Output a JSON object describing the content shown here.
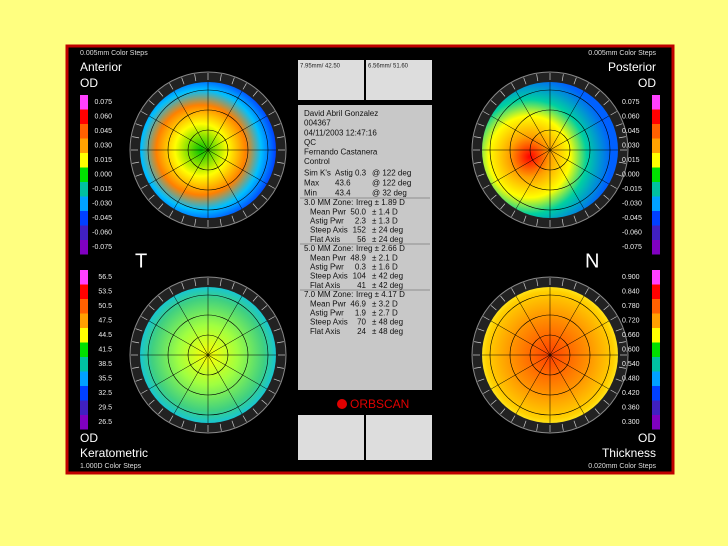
{
  "panels": {
    "anterior": {
      "steps": "0.005mm Color Steps",
      "title": "Anterior",
      "eye": "OD",
      "scale": [
        "0.075",
        "0.060",
        "0.045",
        "0.030",
        "0.015",
        "0.000",
        "-0.015",
        "-0.030",
        "-0.045",
        "-0.060",
        "-0.075"
      ]
    },
    "posterior": {
      "steps": "0.005mm Color Steps",
      "title": "Posterior",
      "eye": "OD",
      "scale": [
        "0.075",
        "0.060",
        "0.045",
        "0.030",
        "0.015",
        "0.000",
        "-0.015",
        "-0.030",
        "-0.045",
        "-0.060",
        "-0.075"
      ]
    },
    "keratometric": {
      "eye": "OD",
      "title": "Keratometric",
      "steps": "1.000D Color Steps",
      "scale": [
        "56.5",
        "53.5",
        "50.5",
        "47.5",
        "44.5",
        "41.5",
        "38.5",
        "35.5",
        "32.5",
        "29.5",
        "26.5"
      ]
    },
    "thickness": {
      "eye": "OD",
      "title": "Thickness",
      "steps": "0.020mm Color Steps",
      "scale": [
        "0.900",
        "0.840",
        "0.780",
        "0.720",
        "0.660",
        "0.600",
        "0.540",
        "0.480",
        "0.420",
        "0.360",
        "0.300"
      ]
    }
  },
  "orientation": {
    "left": "T",
    "right": "N"
  },
  "top_boxes": [
    "7.95mm/ 42.50",
    "6.56mm/ 51.60"
  ],
  "patient": [
    "David Abril Gonzalez",
    "004367",
    "04/11/2003 12:47:16",
    "QC",
    "Fernando Castanera",
    "Control"
  ],
  "sim_k": [
    [
      "Sim K's",
      "Astig 0.3",
      "@ 122 deg"
    ],
    [
      "Max",
      "43.6",
      "@ 122 deg"
    ],
    [
      "Min",
      "43.4",
      "@ 32 deg"
    ]
  ],
  "zones": [
    {
      "header": "3.0 MM Zone:",
      "irreg": "Irreg ± 1.89 D",
      "rows": [
        [
          "Mean Pwr",
          "50.0",
          "± 1.4 D"
        ],
        [
          "Astig Pwr",
          "2.3",
          "± 1.3 D"
        ],
        [
          "Steep Axis",
          "152",
          "± 24 deg"
        ],
        [
          "Flat Axis",
          "56",
          "± 24 deg"
        ]
      ]
    },
    {
      "header": "5.0 MM Zone:",
      "irreg": "Irreg ± 2.66 D",
      "rows": [
        [
          "Mean Pwr",
          "48.9",
          "± 2.1 D"
        ],
        [
          "Astig Pwr",
          "0.3",
          "± 1.6 D"
        ],
        [
          "Steep Axis",
          "104",
          "± 42 deg"
        ],
        [
          "Flat Axis",
          "41",
          "± 42 deg"
        ]
      ]
    },
    {
      "header": "7.0 MM Zone:",
      "irreg": "Irreg ± 4.17 D",
      "rows": [
        [
          "Mean Pwr",
          "46.9",
          "± 3.2 D"
        ],
        [
          "Astig Pwr",
          "1.9",
          "± 2.7 D"
        ],
        [
          "Steep Axis",
          "70",
          "± 48 deg"
        ],
        [
          "Flat Axis",
          "24",
          "± 48 deg"
        ]
      ]
    }
  ],
  "logo": "ORBSCAN"
}
